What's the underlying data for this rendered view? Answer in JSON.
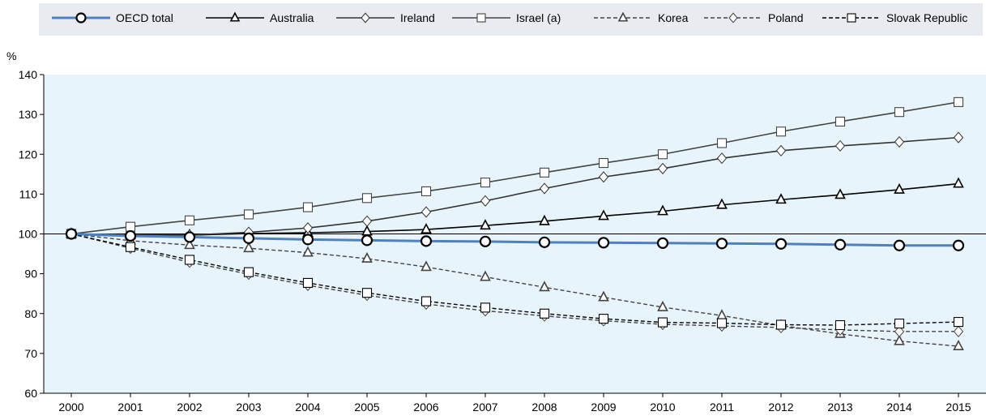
{
  "chart_data": {
    "type": "line",
    "ylabel": "%",
    "ylim": [
      60,
      140
    ],
    "y_ticks": [
      60,
      70,
      80,
      90,
      100,
      110,
      120,
      130,
      140
    ],
    "x": [
      "2000",
      "2001",
      "2002",
      "2003",
      "2004",
      "2005",
      "2006",
      "2007",
      "2008",
      "2009",
      "2010",
      "2011",
      "2012",
      "2013",
      "2014",
      "2015"
    ],
    "grid": false,
    "plot_background": "#e8f4fb",
    "legend_position": "top",
    "legend_background": "#e8ecf0",
    "series": [
      {
        "name": "OECD total",
        "color": "#4f81bd",
        "dash": false,
        "marker": "circle",
        "values": [
          100,
          99.5,
          99.2,
          98.9,
          98.6,
          98.4,
          98.2,
          98.1,
          97.9,
          97.8,
          97.7,
          97.6,
          97.5,
          97.3,
          97.1,
          97.1
        ]
      },
      {
        "name": "Australia",
        "color": "#000000",
        "dash": false,
        "marker": "triangle",
        "values": [
          100,
          99.7,
          99.7,
          100.1,
          100.3,
          100.6,
          101.1,
          102.1,
          103.2,
          104.5,
          105.7,
          107.3,
          108.6,
          109.8,
          111.1,
          112.6
        ]
      },
      {
        "name": "Ireland",
        "color": "#333333",
        "dash": false,
        "marker": "diamond",
        "values": [
          100,
          99.7,
          99.7,
          100.4,
          101.5,
          103.2,
          105.5,
          108.3,
          111.4,
          114.3,
          116.4,
          119.0,
          120.9,
          122.1,
          123.1,
          124.2
        ]
      },
      {
        "name": "Israel (a)",
        "color": "#444444",
        "dash": false,
        "marker": "square",
        "values": [
          100,
          101.8,
          103.4,
          104.9,
          106.7,
          109.0,
          110.7,
          112.9,
          115.4,
          117.8,
          120.0,
          122.8,
          125.7,
          128.2,
          130.6,
          133.1
        ]
      },
      {
        "name": "Korea",
        "color": "#444444",
        "dash": true,
        "marker": "triangle",
        "values": [
          100,
          98.3,
          97.2,
          96.4,
          95.3,
          93.8,
          91.7,
          89.2,
          86.6,
          84.1,
          81.6,
          79.5,
          77.0,
          74.9,
          73.1,
          71.8
        ]
      },
      {
        "name": "Poland",
        "color": "#444444",
        "dash": true,
        "marker": "diamond",
        "values": [
          100,
          96.4,
          92.9,
          89.9,
          87.1,
          84.6,
          82.4,
          80.7,
          79.4,
          78.2,
          77.3,
          76.9,
          76.5,
          75.9,
          75.5,
          75.5
        ]
      },
      {
        "name": "Slovak Republic",
        "color": "#000000",
        "dash": true,
        "marker": "square",
        "values": [
          100,
          96.7,
          93.5,
          90.4,
          87.7,
          85.2,
          83.1,
          81.5,
          80.0,
          78.7,
          77.8,
          77.6,
          77.2,
          77.1,
          77.5,
          77.9
        ]
      }
    ]
  }
}
